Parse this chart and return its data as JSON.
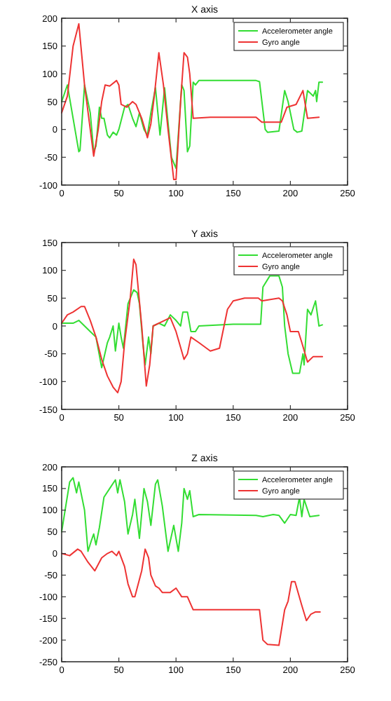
{
  "chart_data": [
    {
      "type": "line",
      "title": "X axis",
      "xlim": [
        0,
        250
      ],
      "xticks": [
        0,
        50,
        100,
        150,
        200,
        250
      ],
      "ylim": [
        -100,
        200
      ],
      "yticks": [
        -100,
        -50,
        0,
        50,
        100,
        150,
        200
      ],
      "legend": "top right",
      "grid": false,
      "series": [
        {
          "name": "Accelerometer angle",
          "color": "#33dd33",
          "x": [
            0,
            5,
            10,
            15,
            16,
            18,
            20,
            25,
            28,
            30,
            33,
            35,
            37,
            40,
            42,
            45,
            48,
            50,
            55,
            58,
            62,
            65,
            68,
            72,
            75,
            78,
            82,
            86,
            90,
            96,
            100,
            105,
            107,
            110,
            112,
            115,
            117,
            120,
            170,
            173,
            178,
            180,
            190,
            195,
            198,
            203,
            206,
            210,
            215,
            220,
            222,
            223,
            225,
            228
          ],
          "values": [
            50,
            80,
            20,
            -40,
            -38,
            20,
            80,
            30,
            -40,
            -30,
            40,
            20,
            20,
            -10,
            -15,
            -5,
            -10,
            0,
            40,
            45,
            20,
            5,
            30,
            0,
            -10,
            30,
            75,
            -10,
            75,
            -50,
            -70,
            80,
            70,
            -40,
            -30,
            85,
            80,
            88,
            88,
            86,
            0,
            -5,
            -3,
            70,
            50,
            0,
            -5,
            -3,
            70,
            60,
            70,
            50,
            85,
            85
          ]
        },
        {
          "name": "Gyro angle",
          "color": "#ee3333",
          "x": [
            0,
            5,
            10,
            15,
            20,
            25,
            28,
            32,
            35,
            38,
            42,
            48,
            50,
            52,
            57,
            62,
            65,
            70,
            75,
            78,
            81,
            85,
            89,
            93,
            98,
            100,
            104,
            107,
            110,
            112,
            115,
            130,
            170,
            175,
            192,
            197,
            205,
            211,
            213,
            215,
            225
          ],
          "values": [
            30,
            60,
            150,
            190,
            80,
            0,
            -48,
            0,
            50,
            80,
            78,
            88,
            80,
            45,
            40,
            50,
            45,
            20,
            -15,
            10,
            60,
            138,
            80,
            0,
            -90,
            -90,
            50,
            138,
            130,
            100,
            20,
            22,
            22,
            13,
            13,
            40,
            45,
            70,
            45,
            20,
            22
          ]
        }
      ]
    },
    {
      "type": "line",
      "title": "Y axis",
      "xlim": [
        0,
        250
      ],
      "xticks": [
        0,
        50,
        100,
        150,
        200,
        250
      ],
      "ylim": [
        -150,
        150
      ],
      "yticks": [
        -150,
        -100,
        -50,
        0,
        50,
        100,
        150
      ],
      "legend": "top right",
      "grid": false,
      "series": [
        {
          "name": "Accelerometer angle",
          "color": "#33dd33",
          "x": [
            0,
            10,
            15,
            20,
            25,
            30,
            35,
            40,
            42,
            45,
            47,
            50,
            52,
            54,
            58,
            63,
            66,
            68,
            71,
            73,
            76,
            78,
            80,
            85,
            90,
            95,
            100,
            104,
            106,
            110,
            113,
            117,
            120,
            150,
            174,
            176,
            182,
            190,
            193,
            195,
            198,
            202,
            208,
            211,
            212,
            215,
            218,
            222,
            225,
            228
          ],
          "values": [
            5,
            5,
            10,
            0,
            -10,
            -20,
            -75,
            -30,
            -20,
            0,
            -45,
            5,
            -20,
            -40,
            40,
            65,
            60,
            40,
            -30,
            -70,
            -20,
            -50,
            0,
            5,
            0,
            20,
            10,
            0,
            25,
            25,
            -10,
            -10,
            0,
            3,
            3,
            70,
            90,
            90,
            70,
            0,
            -50,
            -85,
            -85,
            -50,
            -70,
            30,
            20,
            45,
            0,
            2
          ]
        },
        {
          "name": "Gyro angle",
          "color": "#ee3333",
          "x": [
            0,
            5,
            10,
            17,
            20,
            25,
            30,
            35,
            40,
            45,
            49,
            52,
            55,
            60,
            63,
            65,
            70,
            74,
            77,
            80,
            90,
            95,
            100,
            107,
            110,
            113,
            120,
            130,
            138,
            145,
            150,
            160,
            172,
            175,
            190,
            193,
            197,
            200,
            207,
            210,
            215,
            220,
            228
          ],
          "values": [
            5,
            20,
            25,
            35,
            35,
            10,
            -20,
            -60,
            -90,
            -110,
            -120,
            -100,
            -30,
            50,
            120,
            110,
            0,
            -108,
            -70,
            0,
            10,
            15,
            -10,
            -60,
            -50,
            -20,
            -30,
            -45,
            -40,
            30,
            45,
            50,
            50,
            45,
            50,
            45,
            20,
            -10,
            -10,
            -30,
            -65,
            -55,
            -55
          ]
        }
      ]
    },
    {
      "type": "line",
      "title": "Z axis",
      "xlim": [
        0,
        250
      ],
      "xticks": [
        0,
        50,
        100,
        150,
        200,
        250
      ],
      "ylim": [
        -250,
        200
      ],
      "yticks": [
        -250,
        -200,
        -150,
        -100,
        -50,
        0,
        50,
        100,
        150,
        200
      ],
      "legend": "top right",
      "grid": false,
      "series": [
        {
          "name": "Accelerometer angle",
          "color": "#33dd33",
          "x": [
            0,
            3,
            7,
            10,
            13,
            15,
            20,
            23,
            26,
            28,
            30,
            33,
            37,
            42,
            47,
            49,
            51,
            55,
            58,
            62,
            64,
            68,
            72,
            75,
            78,
            82,
            84,
            88,
            93,
            98,
            102,
            105,
            107,
            110,
            112,
            115,
            120,
            170,
            176,
            185,
            190,
            195,
            200,
            205,
            208,
            210,
            212,
            217,
            225
          ],
          "values": [
            50,
            100,
            165,
            175,
            140,
            165,
            100,
            5,
            30,
            45,
            20,
            60,
            130,
            150,
            170,
            140,
            170,
            120,
            45,
            90,
            125,
            35,
            150,
            120,
            65,
            160,
            170,
            110,
            5,
            65,
            5,
            70,
            150,
            125,
            145,
            85,
            90,
            88,
            85,
            90,
            88,
            70,
            90,
            88,
            130,
            85,
            125,
            85,
            88
          ]
        },
        {
          "name": "Gyro angle",
          "color": "#ee3333",
          "x": [
            0,
            7,
            14,
            17,
            23,
            29,
            35,
            40,
            44,
            48,
            50,
            55,
            58,
            62,
            64,
            70,
            73,
            76,
            78,
            82,
            85,
            88,
            95,
            100,
            105,
            110,
            115,
            150,
            173,
            176,
            180,
            190,
            195,
            198,
            201,
            204,
            210,
            214,
            218,
            222,
            226
          ],
          "values": [
            0,
            -5,
            10,
            5,
            -20,
            -40,
            -10,
            0,
            5,
            -5,
            5,
            -30,
            -70,
            -100,
            -100,
            -40,
            10,
            -10,
            -50,
            -75,
            -80,
            -90,
            -90,
            -80,
            -100,
            -100,
            -130,
            -130,
            -130,
            -200,
            -210,
            -212,
            -130,
            -110,
            -65,
            -65,
            -120,
            -155,
            -140,
            -135,
            -135
          ]
        }
      ]
    }
  ]
}
